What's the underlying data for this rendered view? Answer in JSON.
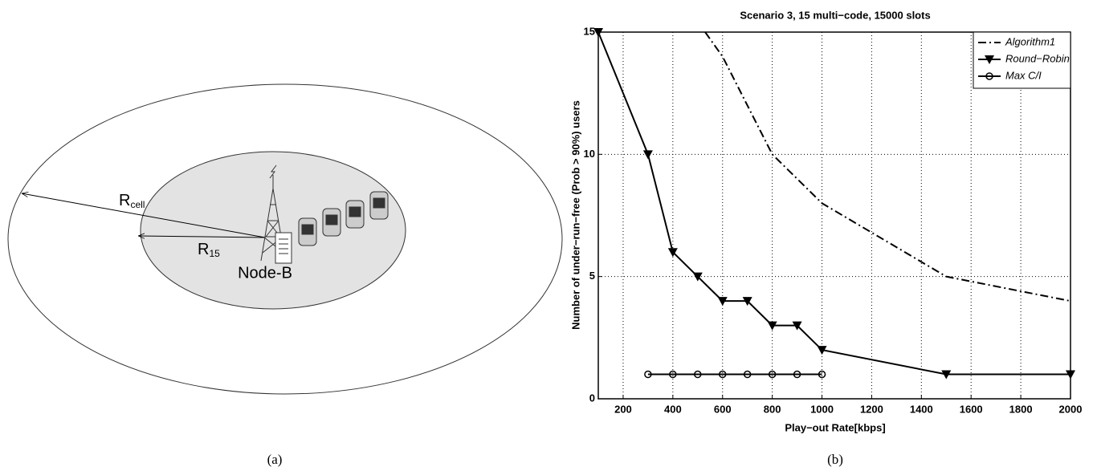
{
  "diagram": {
    "r_cell": {
      "main": "R",
      "sub": "cell"
    },
    "r_15": {
      "main": "R",
      "sub": "15"
    },
    "node_label": "Node-B",
    "caption": "(a)"
  },
  "chart_data": {
    "type": "line",
    "title": "Scenario 3, 15 multi−code, 15000 slots",
    "x_label": "Play−out Rate[kbps]",
    "y_label": "Number of under−run−free (Prob > 90%) users",
    "xlim": [
      100,
      2000
    ],
    "xticks": [
      200,
      400,
      600,
      800,
      1000,
      1200,
      1400,
      1600,
      1800,
      2000
    ],
    "ylim": [
      0,
      15
    ],
    "yticks": [
      0,
      5,
      10,
      15
    ],
    "grid": true,
    "legend": "upper right",
    "series": [
      {
        "name": "Algorithm1",
        "color": "#000000",
        "dash": "dashdot",
        "marker": null,
        "x": [
          530,
          600,
          800,
          1000,
          1500,
          2000
        ],
        "values": [
          15,
          14,
          10,
          8,
          5,
          4
        ]
      },
      {
        "name": "Round−Robin",
        "color": "#000000",
        "dash": "solid",
        "marker": "triangle",
        "x": [
          100,
          300,
          400,
          500,
          600,
          700,
          800,
          900,
          1000,
          1500,
          2000
        ],
        "values": [
          15,
          10,
          6,
          5,
          4,
          4,
          3,
          3,
          2,
          1,
          1
        ]
      },
      {
        "name": "Max C/I",
        "color": "#000000",
        "dash": "solid",
        "marker": "circle",
        "x": [
          300,
          400,
          500,
          600,
          700,
          800,
          900,
          1000
        ],
        "values": [
          1,
          1,
          1,
          1,
          1,
          1,
          1,
          1
        ]
      }
    ],
    "caption": "(b)"
  }
}
